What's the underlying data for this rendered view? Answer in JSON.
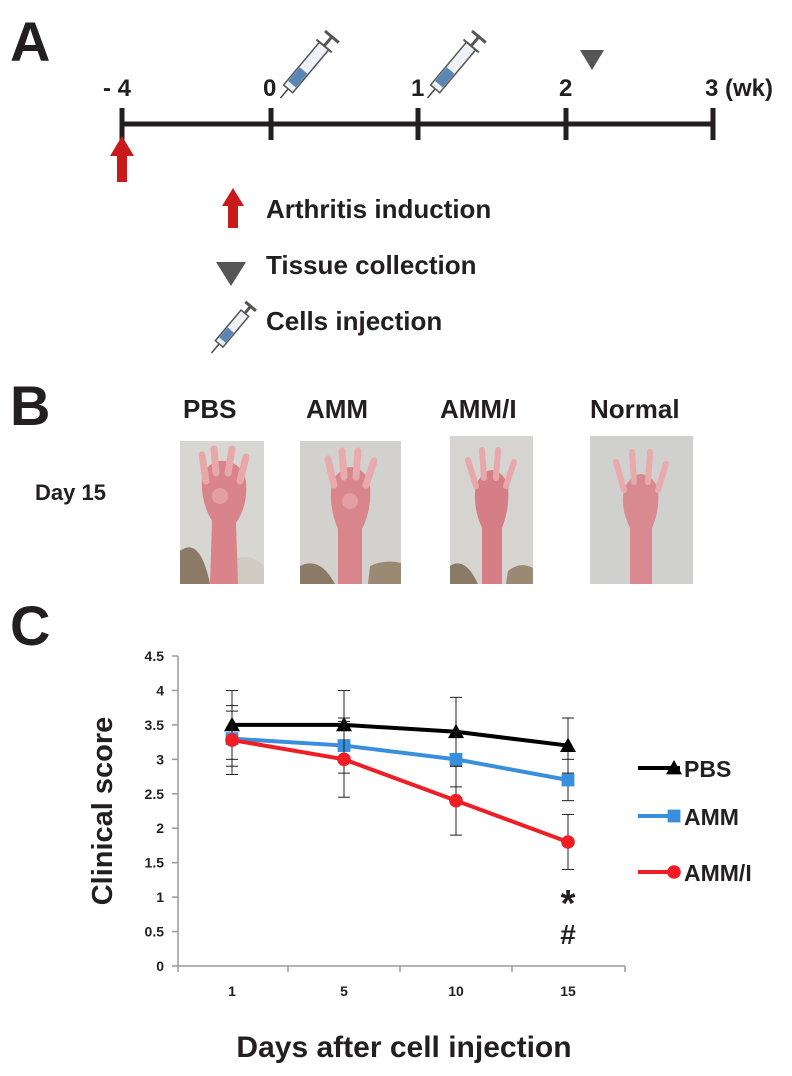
{
  "panels": {
    "a": "A",
    "b": "B",
    "c": "C"
  },
  "timeline": {
    "ticks": [
      "- 4",
      "0",
      "1",
      "2",
      "3 (wk)"
    ],
    "tick_weeks": [
      -4,
      0,
      1,
      2,
      3
    ],
    "legend": {
      "arrow": "Arthritis induction",
      "triangle": "Tissue collection",
      "syringe": "Cells injection"
    },
    "colors": {
      "arrow": "#c8191b",
      "triangle": "#555555",
      "syringe": "#4a6b8c"
    }
  },
  "photos": {
    "row_label": "Day 15",
    "groups": [
      "PBS",
      "AMM",
      "AMM/I",
      "Normal"
    ]
  },
  "chart_data": {
    "type": "line",
    "x": [
      1,
      5,
      10,
      15
    ],
    "xlabel": "Days after cell injection",
    "ylabel": "Clinical score",
    "ylim": [
      0,
      4.5
    ],
    "yticks": [
      "0",
      "0.5",
      "1",
      "1.5",
      "2",
      "2.5",
      "3",
      "3.5",
      "4",
      "4.5"
    ],
    "xticks": [
      "1",
      "5",
      "10",
      "15"
    ],
    "grid": false,
    "legend_position": "right",
    "series": [
      {
        "name": "PBS",
        "values": [
          3.5,
          3.5,
          3.4,
          3.2
        ],
        "errors": [
          0.5,
          0.5,
          0.5,
          0.4
        ],
        "color": "#000000",
        "marker": "triangle"
      },
      {
        "name": "AMM",
        "values": [
          3.3,
          3.2,
          3.0,
          2.7
        ],
        "errors": [
          0.4,
          0.4,
          0.4,
          0.3
        ],
        "color": "#3a8fdc",
        "marker": "square"
      },
      {
        "name": "AMM/I",
        "values": [
          3.28,
          3.0,
          2.4,
          1.8
        ],
        "errors": [
          0.5,
          0.55,
          0.5,
          0.4
        ],
        "color": "#f01d24",
        "marker": "circle"
      }
    ],
    "annotations": [
      "*",
      "#"
    ]
  }
}
